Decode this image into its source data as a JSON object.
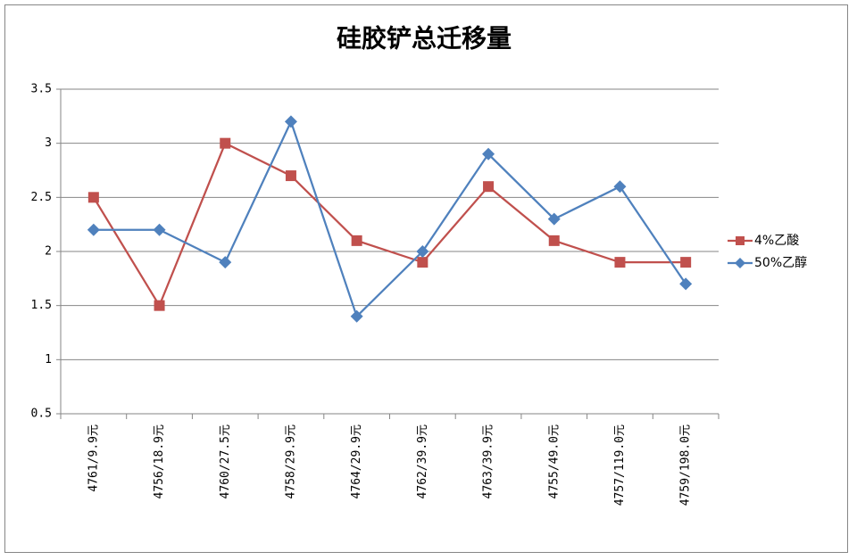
{
  "chart_data": {
    "type": "line",
    "title": "硅胶铲总迁移量",
    "categories": [
      "4761/9.9元",
      "4756/18.9元",
      "4760/27.5元",
      "4758/29.9元",
      "4764/29.9元",
      "4762/39.9元",
      "4763/39.9元",
      "4755/49.0元",
      "4757/119.0元",
      "4759/198.0元"
    ],
    "series": [
      {
        "name": "4%乙酸",
        "color": "#c0504d",
        "marker": "square",
        "values": [
          2.5,
          1.5,
          3.0,
          2.7,
          2.1,
          1.9,
          2.6,
          2.1,
          1.9,
          1.9
        ]
      },
      {
        "name": "50%乙醇",
        "color": "#4f81bd",
        "marker": "diamond",
        "values": [
          2.2,
          2.2,
          1.9,
          3.2,
          1.4,
          2.0,
          2.9,
          2.3,
          2.6,
          1.7
        ]
      }
    ],
    "ylim": [
      0.5,
      3.5
    ],
    "yticks": [
      0.5,
      1,
      1.5,
      2,
      2.5,
      3,
      3.5
    ],
    "grid": true,
    "legend": "right"
  }
}
